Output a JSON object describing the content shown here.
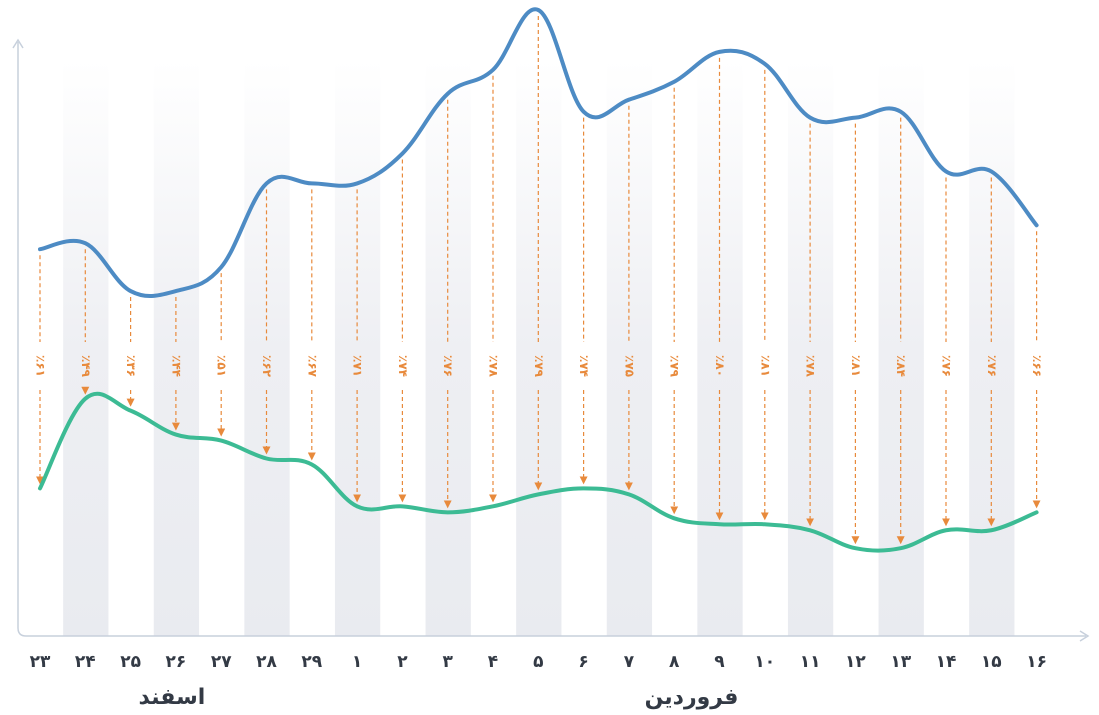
{
  "colors": {
    "top_series": "#4d8bc4",
    "bottom_series": "#3cbb94",
    "drop_arrow": "#e88a3c",
    "axis": "#c7d0dc",
    "band": "#eeeff3",
    "text": "#333a45"
  },
  "chart_data": {
    "type": "line",
    "grid": "alternating vertical bands",
    "legend": "none",
    "categories": [
      "۲۳",
      "۲۴",
      "۲۵",
      "۲۶",
      "۲۷",
      "۲۸",
      "۲۹",
      "۱",
      "۲",
      "۳",
      "۴",
      "۵",
      "۶",
      "۷",
      "۸",
      "۹",
      "۱۰",
      "۱۱",
      "۱۲",
      "۱۳",
      "۱۴",
      "۱۵",
      "۱۶"
    ],
    "month_labels": [
      {
        "text": "اسفند",
        "at_index": 3
      },
      {
        "text": "فروردین",
        "at_index": 15
      }
    ],
    "ylim": [
      0,
      100
    ],
    "series": [
      {
        "values": [
          60,
          61,
          53,
          53,
          57,
          71,
          71,
          71,
          76,
          86,
          90,
          100,
          83,
          85,
          88,
          93,
          91,
          82,
          82,
          83,
          73,
          73,
          64
        ]
      },
      {
        "values": [
          20,
          35,
          33,
          29,
          28,
          25,
          24,
          17,
          17,
          16,
          17,
          19,
          20,
          19,
          15,
          14,
          14,
          13,
          10,
          10,
          13,
          13,
          16
        ]
      }
    ],
    "drop_labels": [
      "٪۶۱",
      "٪۴۹",
      "٪۳۶",
      "٪۴۴",
      "٪۵۱",
      "٪۶۲",
      "٪۶۷",
      "٪۷۱",
      "٪۷۴",
      "٪۷۶",
      "٪۷۸",
      "٪۷۹",
      "٪۷۴",
      "٪۷۵",
      "٪۷۹",
      "٪۸۰",
      "٪۸۱",
      "٪۷۸",
      "٪۸۱",
      "٪۸۴",
      "٪۷۶",
      "٪۷۶",
      "٪۶۶"
    ]
  }
}
